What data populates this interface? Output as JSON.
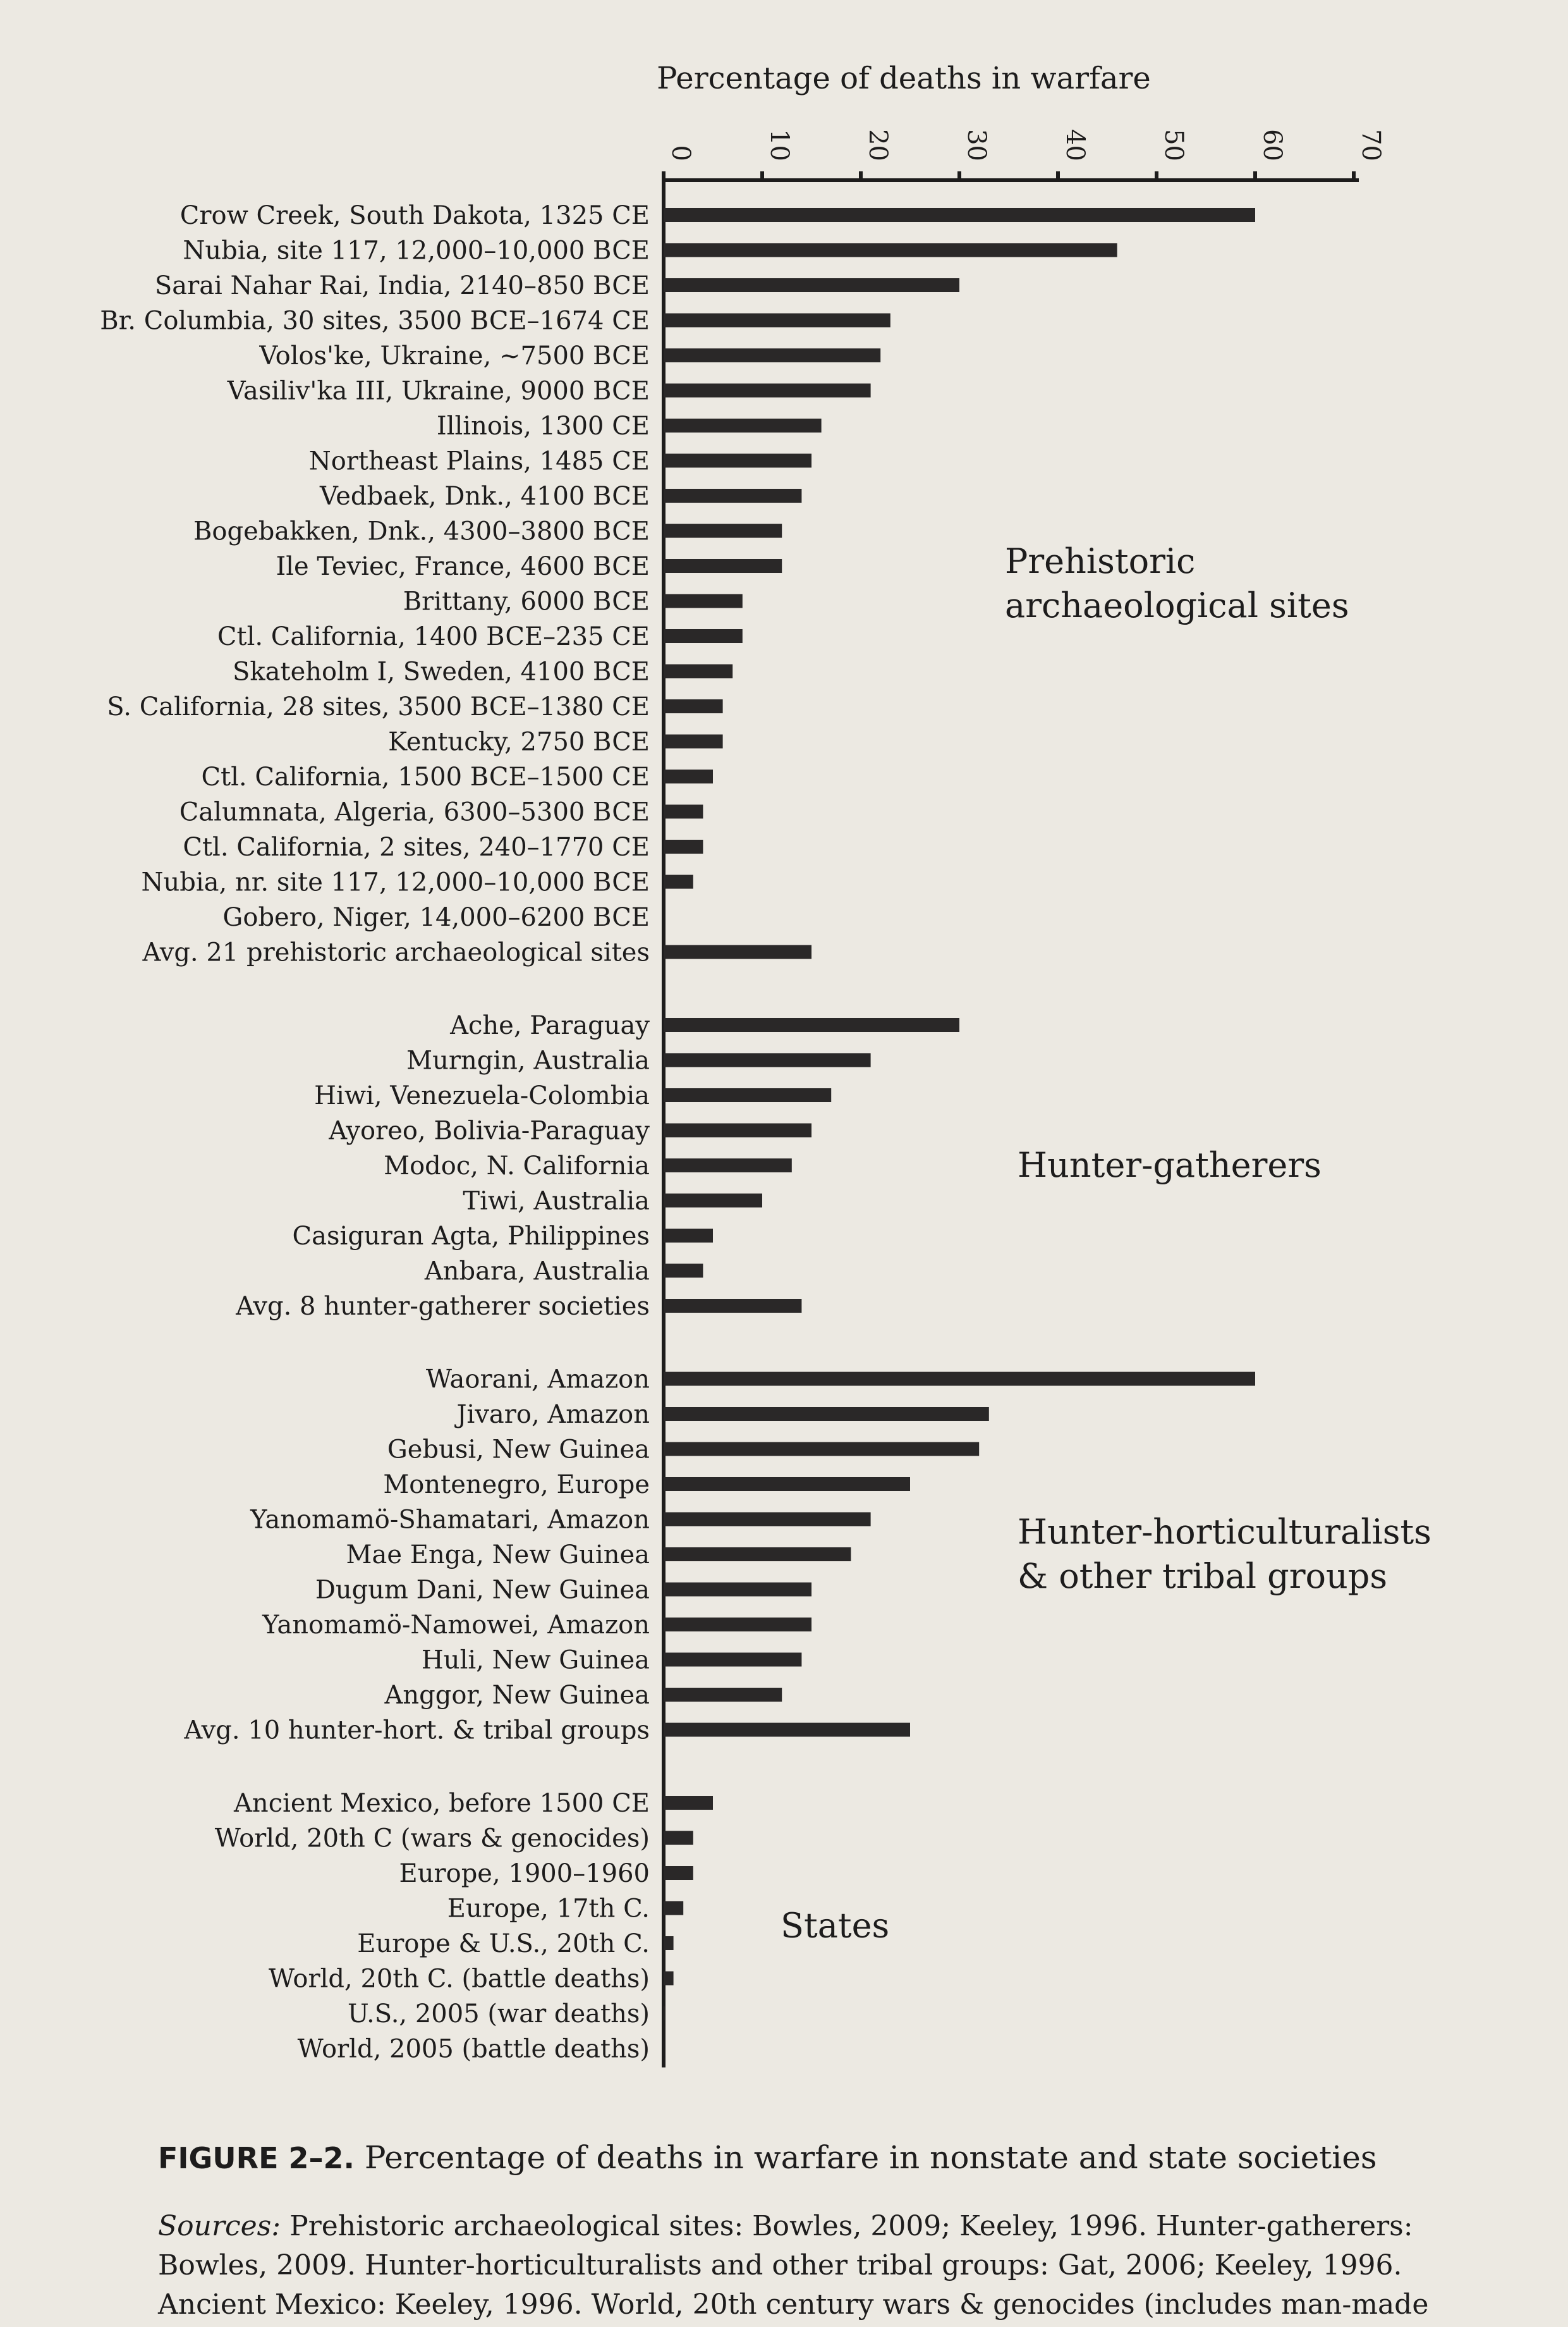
{
  "chart_data": {
    "type": "bar",
    "orientation": "horizontal",
    "title": "Percentage of deaths in warfare",
    "xlim": [
      0,
      70
    ],
    "x_ticks": [
      "0",
      "10",
      "20",
      "30",
      "40",
      "50",
      "60",
      "70"
    ],
    "grid": false,
    "groups": [
      {
        "label": "Prehistoric archaeological sites",
        "label_lines": [
          "Prehistoric",
          "archaeological sites"
        ],
        "categories": [
          "Crow Creek, South Dakota, 1325 CE",
          "Nubia, site 117, 12,000–10,000 BCE",
          "Sarai Nahar Rai, India, 2140–850 BCE",
          "Br. Columbia, 30 sites, 3500 BCE–1674 CE",
          "Volos'ke, Ukraine, ~7500 BCE",
          "Vasiliv'ka III, Ukraine, 9000 BCE",
          "Illinois, 1300 CE",
          "Northeast Plains, 1485 CE",
          "Vedbaek, Dnk., 4100 BCE",
          "Bogebakken, Dnk., 4300–3800 BCE",
          "Ile Teviec, France, 4600 BCE",
          "Brittany, 6000 BCE",
          "Ctl. California, 1400 BCE–235 CE",
          "Skateholm I, Sweden, 4100 BCE",
          "S. California, 28 sites, 3500 BCE–1380 CE",
          "Kentucky, 2750 BCE",
          "Ctl. California, 1500 BCE–1500 CE",
          "Calumnata, Algeria, 6300–5300 BCE",
          "Ctl. California, 2 sites, 240–1770 CE",
          "Nubia, nr. site 117, 12,000–10,000 BCE",
          "Gobero, Niger, 14,000–6200 BCE",
          "Avg. 21 prehistoric archaeological sites"
        ],
        "values": [
          60,
          46,
          30,
          23,
          22,
          21,
          16,
          15,
          14,
          12,
          12,
          8,
          8,
          7,
          6,
          6,
          5,
          4,
          4,
          3,
          0,
          15
        ]
      },
      {
        "label": "Hunter-gatherers",
        "label_lines": [
          "Hunter-gatherers"
        ],
        "categories": [
          "Ache, Paraguay",
          "Murngin, Australia",
          "Hiwi, Venezuela-Colombia",
          "Ayoreo, Bolivia-Paraguay",
          "Modoc, N. California",
          "Tiwi, Australia",
          "Casiguran Agta, Philippines",
          "Anbara, Australia",
          "Avg. 8 hunter-gatherer societies"
        ],
        "values": [
          30,
          21,
          17,
          15,
          13,
          10,
          5,
          4,
          14
        ]
      },
      {
        "label": "Hunter-horticulturalists & other tribal groups",
        "label_lines": [
          "Hunter-horticulturalists",
          "& other tribal groups"
        ],
        "categories": [
          "Waorani, Amazon",
          "Jivaro, Amazon",
          "Gebusi, New Guinea",
          "Montenegro, Europe",
          "Yanomamö-Shamatari, Amazon",
          "Mae Enga, New Guinea",
          "Dugum Dani, New Guinea",
          "Yanomamö-Namowei, Amazon",
          "Huli, New Guinea",
          "Anggor, New Guinea",
          "Avg. 10 hunter-hort. & tribal groups"
        ],
        "values": [
          60,
          33,
          32,
          25,
          21,
          19,
          15,
          15,
          14,
          12,
          25
        ]
      },
      {
        "label": "States",
        "label_lines": [
          "States"
        ],
        "categories": [
          "Ancient Mexico, before 1500 CE",
          "World, 20th C (wars & genocides)",
          "Europe, 1900–1960",
          "Europe, 17th C.",
          "Europe & U.S., 20th C.",
          "World, 20th C. (battle deaths)",
          "U.S., 2005 (war deaths)",
          "World, 2005 (battle deaths)"
        ],
        "values": [
          5,
          3,
          3,
          2,
          1,
          1,
          0.1,
          0.03
        ]
      }
    ]
  },
  "caption": {
    "figure_number": "FIGURE 2–2.",
    "title": "Percentage of deaths in warfare in nonstate and state societies"
  },
  "sources": {
    "label": "Sources:",
    "text": "Prehistoric archaeological sites: Bowles, 2009; Keeley, 1996. Hunter-gatherers: Bowles, 2009. Hunter-horticulturalists and other tribal groups: Gat, 2006; Keeley, 1996. Ancient Mexico: Keeley, 1996. World, 20th century wars & genocides (includes man-made"
  }
}
